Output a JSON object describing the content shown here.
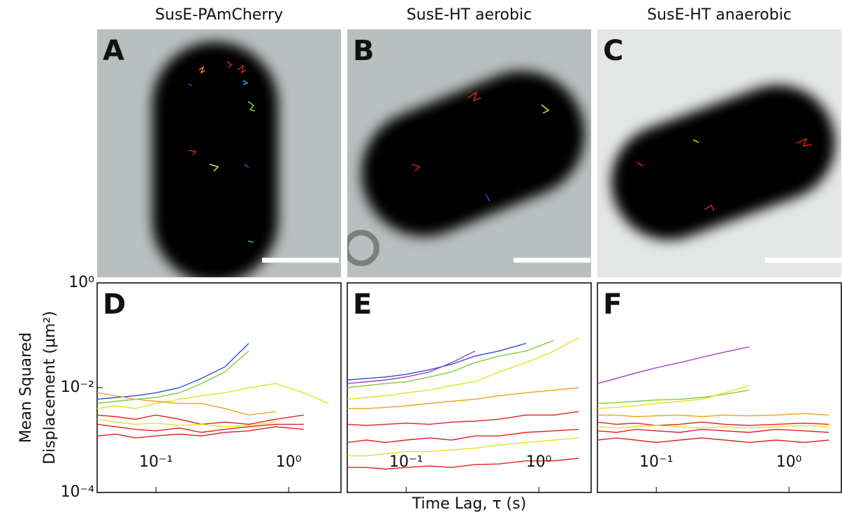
{
  "images": [
    {
      "title": "SusE-PAmCherry",
      "label": "A"
    },
    {
      "title": "SusE-HT aerobic",
      "label": "B"
    },
    {
      "title": "SusE-HT anaerobic",
      "label": "C"
    }
  ],
  "chart_data": [
    {
      "type": "line",
      "label": "D",
      "log_x": true,
      "log_y": true,
      "ylabel": [
        "Mean Squared",
        "Displacement (μm²)"
      ],
      "xlim": [
        0.036,
        2.48
      ],
      "ylim": [
        0.0001,
        1
      ],
      "xticks": [
        {
          "value": 0.1,
          "label": "10⁻¹"
        },
        {
          "value": 1,
          "label": "10⁰"
        }
      ],
      "yticks": [
        {
          "value": 0.0001,
          "label": "10⁻⁴"
        },
        {
          "value": 0.01,
          "label": "10⁻²"
        },
        {
          "value": 1,
          "label": "10⁰"
        }
      ],
      "x": [
        0.036,
        0.05,
        0.07,
        0.1,
        0.15,
        0.22,
        0.33,
        0.5,
        0.8,
        1.3,
        2.0
      ],
      "series": [
        {
          "color": "#2b4fd0",
          "values": [
            0.006,
            0.0065,
            0.007,
            0.008,
            0.01,
            0.015,
            0.025,
            0.07,
            null,
            null,
            null
          ]
        },
        {
          "color": "#7ccf3a",
          "values": [
            0.005,
            0.0055,
            0.006,
            0.0065,
            0.008,
            0.012,
            0.02,
            0.05,
            null,
            null,
            null
          ]
        },
        {
          "color": "#e8e020",
          "values": [
            0.004,
            0.0045,
            0.004,
            0.005,
            0.006,
            0.007,
            0.008,
            0.01,
            0.012,
            0.008,
            0.005
          ]
        },
        {
          "color": "#f0a020",
          "values": [
            0.008,
            0.007,
            0.006,
            0.0055,
            0.005,
            0.005,
            0.004,
            0.003,
            0.0035,
            null,
            null
          ]
        },
        {
          "color": "#e02020",
          "values": [
            0.003,
            0.0028,
            0.0025,
            0.003,
            0.0025,
            0.002,
            0.0022,
            0.002,
            0.0025,
            0.003,
            null
          ]
        },
        {
          "color": "#e02020",
          "values": [
            0.002,
            0.0018,
            0.0016,
            0.0015,
            0.0017,
            0.0014,
            0.0016,
            0.0018,
            0.002,
            0.002,
            null
          ]
        },
        {
          "color": "#e02020",
          "values": [
            0.0012,
            0.0013,
            0.0011,
            0.0012,
            0.0013,
            0.0012,
            0.0014,
            0.0015,
            0.0018,
            0.0016,
            null
          ]
        },
        {
          "color": "#e8e020",
          "values": [
            0.0025,
            0.0022,
            0.002,
            0.0021,
            0.0019,
            0.002,
            0.0018,
            0.0019,
            0.0022,
            null,
            null
          ]
        }
      ]
    },
    {
      "type": "line",
      "label": "E",
      "log_x": true,
      "log_y": true,
      "xlabel": "Time Lag, τ (s)",
      "xlim": [
        0.036,
        2.48
      ],
      "ylim": [
        0.0001,
        1
      ],
      "xticks": [
        {
          "value": 0.1,
          "label": "10⁻¹"
        },
        {
          "value": 1,
          "label": "10⁰"
        }
      ],
      "x": [
        0.036,
        0.05,
        0.07,
        0.1,
        0.15,
        0.22,
        0.33,
        0.5,
        0.8,
        1.3,
        2.0
      ],
      "series": [
        {
          "color": "#2b4fd0",
          "values": [
            0.014,
            0.015,
            0.016,
            0.018,
            0.022,
            0.028,
            0.04,
            0.05,
            0.07,
            null,
            null
          ]
        },
        {
          "color": "#a040c0",
          "values": [
            0.012,
            0.013,
            0.014,
            0.016,
            0.02,
            0.03,
            0.05,
            null,
            null,
            null,
            null
          ]
        },
        {
          "color": "#7ccf3a",
          "values": [
            0.01,
            0.011,
            0.012,
            0.013,
            0.016,
            0.02,
            0.03,
            0.04,
            0.05,
            0.08,
            null
          ]
        },
        {
          "color": "#e8e020",
          "values": [
            0.006,
            0.0065,
            0.007,
            0.008,
            0.009,
            0.011,
            0.013,
            0.02,
            0.03,
            0.05,
            0.09
          ]
        },
        {
          "color": "#f0a020",
          "values": [
            0.004,
            0.004,
            0.0042,
            0.0045,
            0.005,
            0.0055,
            0.006,
            0.007,
            0.008,
            0.009,
            0.01
          ]
        },
        {
          "color": "#e02020",
          "values": [
            0.002,
            0.0019,
            0.002,
            0.0021,
            0.002,
            0.0022,
            0.0023,
            0.0025,
            0.003,
            0.003,
            0.0035
          ]
        },
        {
          "color": "#e02020",
          "values": [
            0.0009,
            0.001,
            0.0009,
            0.001,
            0.0011,
            0.001,
            0.0012,
            0.0012,
            0.0014,
            0.0015,
            0.0016
          ]
        },
        {
          "color": "#e8e020",
          "values": [
            0.0005,
            0.0005,
            0.00055,
            0.0006,
            0.0006,
            0.00065,
            0.0007,
            0.0008,
            0.0009,
            0.001,
            0.0011
          ]
        },
        {
          "color": "#e02020",
          "values": [
            0.0003,
            0.0003,
            0.00028,
            0.0003,
            0.00032,
            0.0003,
            0.00034,
            0.00035,
            0.0004,
            0.0004,
            0.00045
          ]
        }
      ]
    },
    {
      "type": "line",
      "label": "F",
      "log_x": true,
      "log_y": true,
      "xlim": [
        0.036,
        2.48
      ],
      "ylim": [
        0.0001,
        1
      ],
      "xticks": [
        {
          "value": 0.1,
          "label": "10⁻¹"
        },
        {
          "value": 1,
          "label": "10⁰"
        }
      ],
      "x": [
        0.036,
        0.05,
        0.07,
        0.1,
        0.15,
        0.22,
        0.33,
        0.5,
        0.8,
        1.3,
        2.0
      ],
      "series": [
        {
          "color": "#a040c0",
          "values": [
            0.012,
            0.015,
            0.019,
            0.024,
            0.03,
            0.038,
            0.048,
            0.06,
            null,
            null,
            null
          ]
        },
        {
          "color": "#7ccf3a",
          "values": [
            0.005,
            0.0052,
            0.0055,
            0.0058,
            0.006,
            0.0065,
            0.0075,
            0.009,
            null,
            null,
            null
          ]
        },
        {
          "color": "#e8e020",
          "values": [
            0.004,
            0.0042,
            0.0045,
            0.005,
            0.0055,
            0.006,
            0.008,
            0.011,
            null,
            null,
            null
          ]
        },
        {
          "color": "#f0a020",
          "values": [
            0.003,
            0.003,
            0.0028,
            0.0029,
            0.003,
            0.0028,
            0.003,
            0.0029,
            0.003,
            0.0032,
            0.003
          ]
        },
        {
          "color": "#e02020",
          "values": [
            0.0022,
            0.002,
            0.0021,
            0.0019,
            0.002,
            0.0022,
            0.002,
            0.0019,
            0.002,
            0.0021,
            0.002
          ]
        },
        {
          "color": "#e02020",
          "values": [
            0.0015,
            0.0014,
            0.0016,
            0.0015,
            0.0014,
            0.0016,
            0.0015,
            0.0014,
            0.0016,
            0.0015,
            0.0014
          ]
        },
        {
          "color": "#e02020",
          "values": [
            0.001,
            0.0011,
            0.001,
            0.0009,
            0.001,
            0.0011,
            0.001,
            0.0009,
            0.001,
            0.0009,
            0.001
          ]
        },
        {
          "color": "#e8e020",
          "values": [
            0.0018,
            0.0017,
            0.0018,
            0.0019,
            0.0018,
            0.0017,
            0.0018,
            0.0017,
            0.0018,
            0.0019,
            0.0018
          ]
        }
      ]
    }
  ]
}
